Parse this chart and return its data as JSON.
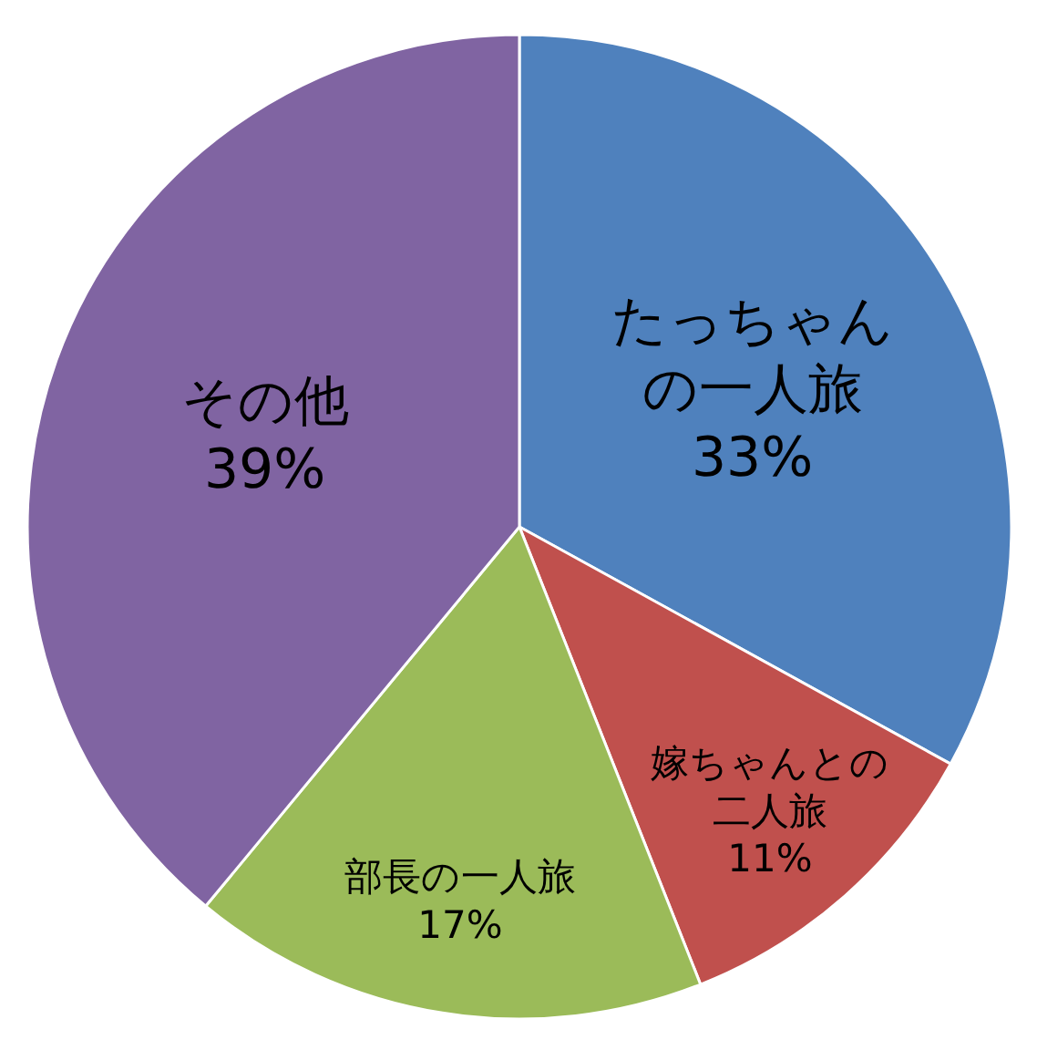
{
  "chart_data": {
    "type": "pie",
    "categories": [
      "たっちゃんの一人旅",
      "嫁ちゃんとの二人旅",
      "部長の一人旅",
      "その他"
    ],
    "values": [
      33,
      11,
      17,
      39
    ],
    "colors": [
      "#4f81bd",
      "#c0504d",
      "#9bbb59",
      "#8064a2"
    ],
    "value_labels": [
      "33%",
      "11%",
      "17%",
      "39%"
    ]
  }
}
